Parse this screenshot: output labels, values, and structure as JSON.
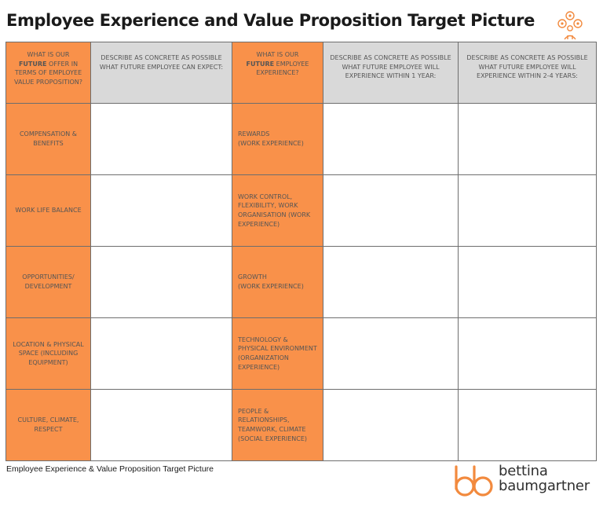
{
  "title": "Employee Experience and Value Proposition Target Picture",
  "title_icon": "people-gears-icon",
  "accent_color": "#f9914a",
  "header_gray_color": "#d9d9d9",
  "headers": {
    "col1": {
      "before": "WHAT IS OUR",
      "emphasis": "FUTURE",
      "after": "OFFER IN TERMS OF EMPLOYEE VALUE PROPOSITION?"
    },
    "col2": "DESCRIBE AS CONCRETE AS POSSIBLE WHAT FUTURE EMPLOYEE CAN EXPECT:",
    "col3": {
      "before": "WHAT IS OUR",
      "emphasis": "FUTURE",
      "after": "EMPLOYEE EXPERIENCE?"
    },
    "col4": "DESCRIBE AS CONCRETE AS POSSIBLE WHAT FUTURE EMPLOYEE WILL EXPERIENCE WITHIN 1 YEAR:",
    "col5": "DESCRIBE AS CONCRETE AS POSSIBLE WHAT FUTURE EMPLOYEE WILL EXPERIENCE WITHIN 2-4 YEARS:"
  },
  "rows": [
    {
      "value_prop": "COMPENSATION & BENEFITS",
      "experience": "REWARDS\n(WORK EXPERIENCE)"
    },
    {
      "value_prop": "WORK LIFE BALANCE",
      "experience": "WORK CONTROL, FLEXIBILITY, WORK ORGANISATION (WORK EXPERIENCE)"
    },
    {
      "value_prop": "OPPORTUNITIES/ DEVELOPMENT",
      "experience": "GROWTH\n(WORK EXPERIENCE)"
    },
    {
      "value_prop": "LOCATION & PHYSICAL SPACE (INCLUDING EQUIPMENT)",
      "experience": "TECHNOLOGY & PHYSICAL ENVIRONMENT (ORGANIZATION EXPERIENCE)"
    },
    {
      "value_prop": "CULTURE, CLIMATE, RESPECT",
      "experience": "PEOPLE & RELATIONSHIPS, TEAMWORK, CLIMATE  (SOCIAL EXPERIENCE)"
    }
  ],
  "footer_caption": "Employee Experience & Value Proposition Target Picture",
  "logo": {
    "mark": "bb-logo-icon",
    "line1": "bettina",
    "line2": "baumgartner"
  }
}
